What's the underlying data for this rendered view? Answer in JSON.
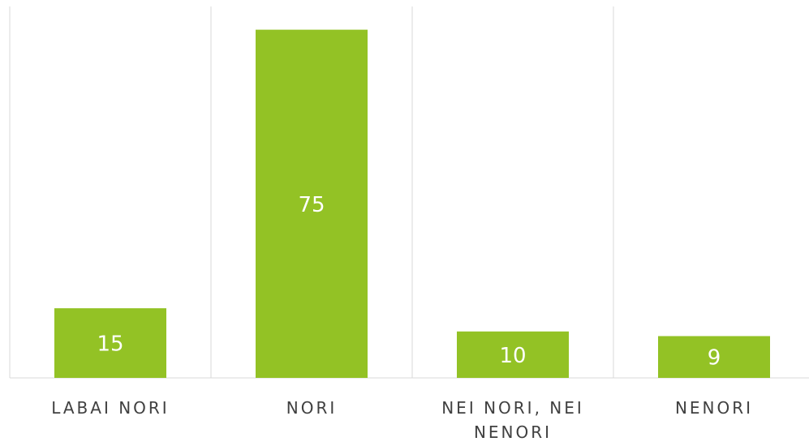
{
  "chart_data": {
    "type": "bar",
    "categories": [
      "LABAI NORI",
      "NORI",
      "NEI NORI, NEI NENORI",
      "NENORI"
    ],
    "values": [
      15,
      75,
      10,
      9
    ],
    "color": "#93c225",
    "ylim": [
      0,
      80
    ],
    "grid": true
  }
}
